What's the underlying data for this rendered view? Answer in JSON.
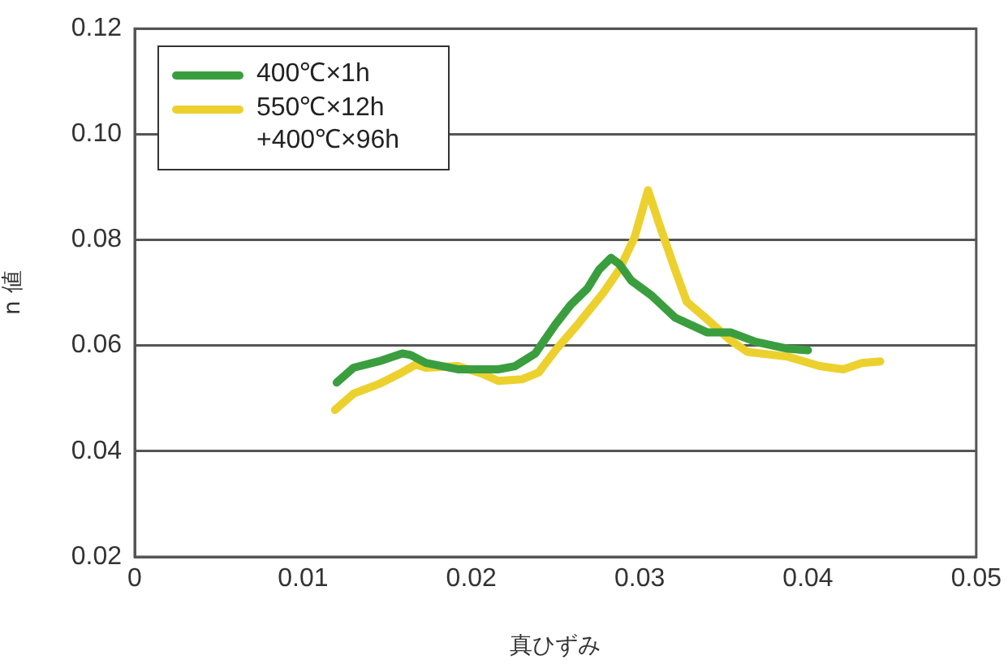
{
  "chart_data": {
    "type": "line",
    "xlabel": "真ひずみ",
    "ylabel": "n 値",
    "xlim": [
      0,
      0.05
    ],
    "xticks": [
      0,
      0.01,
      0.02,
      0.03,
      0.04,
      0.05
    ],
    "ylim": [
      0.02,
      0.12
    ],
    "yticks": [
      0.02,
      0.04,
      0.06,
      0.08,
      {
        "value": 0.1,
        "label": "0.10"
      },
      0.12
    ],
    "grid": "y",
    "legend": "top left",
    "marker": "none",
    "line_style": "solid",
    "series": [
      {
        "name": "400℃×1h",
        "color": "#3a9e3f",
        "x": [
          0.012,
          0.013,
          0.0145,
          0.0159,
          0.0164,
          0.0173,
          0.0192,
          0.0216,
          0.0226,
          0.0238,
          0.025,
          0.0259,
          0.0269,
          0.0276,
          0.0283,
          0.0288,
          0.0295,
          0.0307,
          0.0321,
          0.034,
          0.0354,
          0.0369,
          0.0388,
          0.04
        ],
        "values": [
          0.053,
          0.0558,
          0.057,
          0.0585,
          0.0582,
          0.0567,
          0.0555,
          0.0555,
          0.0561,
          0.0585,
          0.064,
          0.0677,
          0.0708,
          0.0744,
          0.0766,
          0.0754,
          0.0723,
          0.0695,
          0.0653,
          0.0625,
          0.0625,
          0.0607,
          0.0594,
          0.0591
        ]
      },
      {
        "name": "550℃×12h +400℃×96h",
        "color": "#ecd12e",
        "x": [
          0.0119,
          0.013,
          0.0145,
          0.0157,
          0.0167,
          0.0173,
          0.0192,
          0.0207,
          0.0216,
          0.023,
          0.024,
          0.025,
          0.0264,
          0.0278,
          0.0288,
          0.0297,
          0.0305,
          0.0311,
          0.0321,
          0.0328,
          0.034,
          0.0354,
          0.0364,
          0.0388,
          0.0407,
          0.0421,
          0.0432,
          0.0443
        ],
        "values": [
          0.0478,
          0.0509,
          0.0527,
          0.0546,
          0.0564,
          0.0558,
          0.0561,
          0.0546,
          0.0533,
          0.0536,
          0.0549,
          0.0591,
          0.0643,
          0.0698,
          0.0744,
          0.0805,
          0.0894,
          0.0836,
          0.0744,
          0.0683,
          0.065,
          0.061,
          0.0588,
          0.0579,
          0.0561,
          0.0555,
          0.0567,
          0.057
        ]
      }
    ]
  }
}
